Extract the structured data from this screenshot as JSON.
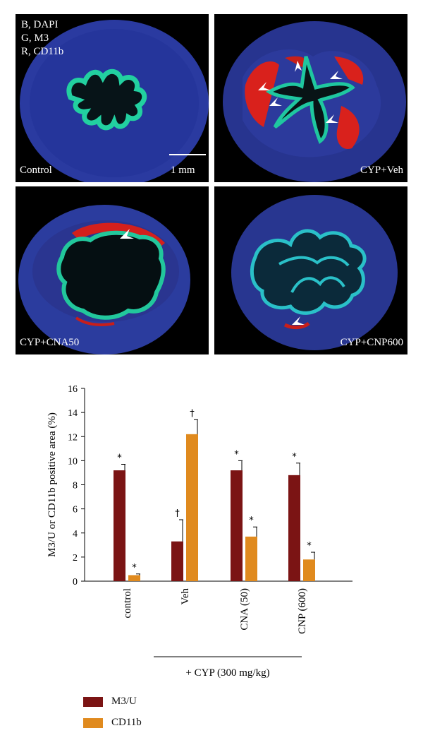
{
  "panels": [
    {
      "id": "control",
      "label": "Control",
      "channels": [
        "B, DAPI",
        "G, M3",
        "R, CD11b"
      ],
      "scale": "1 mm"
    },
    {
      "id": "cyp-veh",
      "label": "CYP+Veh"
    },
    {
      "id": "cyp-cna50",
      "label": "CYP+CNA50"
    },
    {
      "id": "cyp-cnp600",
      "label": "CYP+CNP600"
    }
  ],
  "colors": {
    "m3u": "#7b1414",
    "cd11b": "#e08a1e",
    "dapi": "#2a3ea8",
    "m3": "#1ecf9a",
    "cd11b_stain": "#e0261e"
  },
  "chart_data": {
    "type": "bar",
    "ylabel": "M3/U or CD11b positive area (%)",
    "ylim": [
      0,
      16
    ],
    "yticks": [
      0,
      2,
      4,
      6,
      8,
      10,
      12,
      14,
      16
    ],
    "categories": [
      "control",
      "Veh",
      "CNA (50)",
      "CNP (600)"
    ],
    "group_label": "+ CYP (300 mg/kg)",
    "series": [
      {
        "name": "M3/U",
        "values": [
          9.2,
          3.3,
          9.2,
          8.8
        ],
        "errors": [
          0.5,
          1.8,
          0.8,
          1.0
        ],
        "marks": [
          "*",
          "†",
          "*",
          "*"
        ]
      },
      {
        "name": "CD11b",
        "values": [
          0.5,
          12.2,
          3.7,
          1.8
        ],
        "errors": [
          0.1,
          1.2,
          0.8,
          0.6
        ],
        "marks": [
          "*",
          "†",
          "*",
          "*"
        ]
      }
    ]
  }
}
